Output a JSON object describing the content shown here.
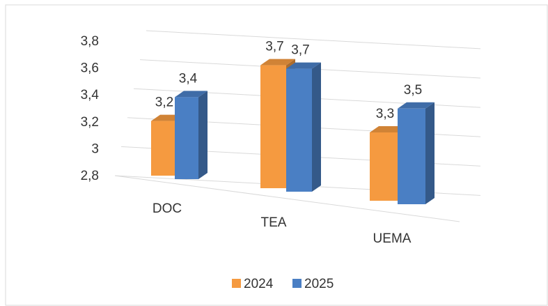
{
  "chart_data": {
    "type": "bar3d",
    "categories": [
      "DOC",
      "TEA",
      "UEMA"
    ],
    "series": [
      {
        "name": "2024",
        "color": "#f59a40",
        "values": [
          3.2,
          3.7,
          3.3
        ],
        "value_labels": [
          "3,2",
          "3,7",
          "3,3"
        ]
      },
      {
        "name": "2025",
        "color": "#4a7fc4",
        "values": [
          3.4,
          3.7,
          3.5
        ],
        "value_labels": [
          "3,4",
          "3,7",
          "3,5"
        ]
      }
    ],
    "ylim": [
      2.8,
      3.8
    ],
    "yticks": [
      {
        "value": 2.8,
        "label": "2,8"
      },
      3,
      {
        "value": 3.2,
        "label": "3,2"
      },
      {
        "value": 3.4,
        "label": "3,4"
      },
      {
        "value": 3.6,
        "label": "3,6"
      },
      {
        "value": 3.8,
        "label": "3,8"
      }
    ],
    "grid": true,
    "legend": "bottom"
  }
}
